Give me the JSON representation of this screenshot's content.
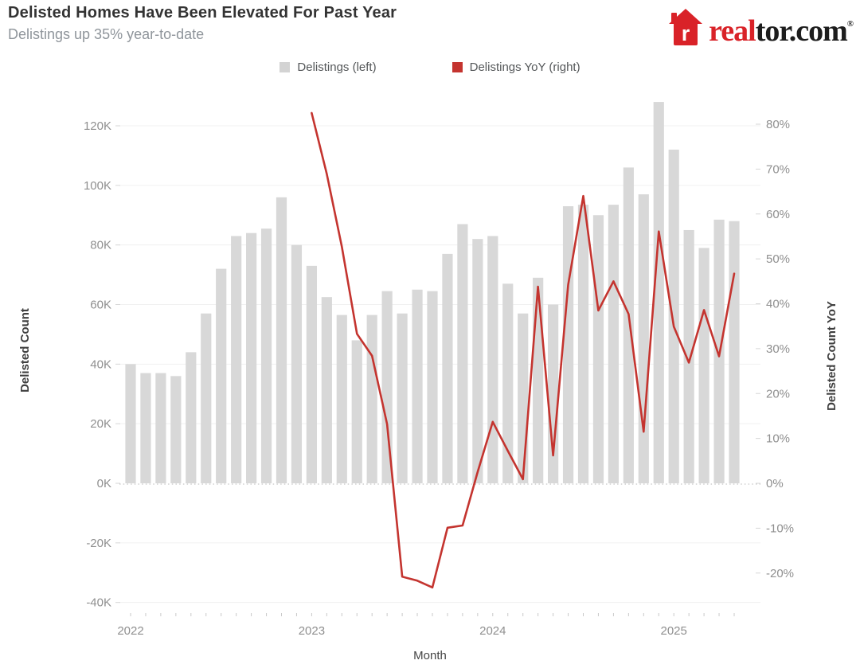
{
  "header": {
    "title": "Delisted Homes Have Been Elevated For Past Year",
    "subtitle": "Delistings up 35% year-to-date"
  },
  "brand": {
    "logo_text_red": "real",
    "logo_text_dark": "tor.com",
    "registered_mark": "®",
    "house_icon": "realtor-house-icon",
    "brand_red": "#d92228",
    "brand_dark": "#1d1d1d"
  },
  "legend": {
    "items": [
      {
        "label": "Delistings (left)",
        "color": "#d3d3d3"
      },
      {
        "label": "Delistings YoY (right)",
        "color": "#c4342f"
      }
    ]
  },
  "axes": {
    "left": {
      "title": "Delisted Count",
      "tick_labels": [
        "120K",
        "100K",
        "80K",
        "60K",
        "40K",
        "20K",
        "0K",
        "-20K",
        "-40K"
      ]
    },
    "right": {
      "title": "Delisted Count YoY",
      "tick_labels": [
        "80%",
        "70%",
        "60%",
        "50%",
        "40%",
        "30%",
        "20%",
        "10%",
        "0%",
        "-10%",
        "-20%"
      ]
    },
    "x": {
      "title": "Month",
      "year_labels": [
        "2022",
        "2023",
        "2024",
        "2025"
      ]
    }
  },
  "chart_data": {
    "type": "bar",
    "subtype": "combo bar+line, dual axis",
    "title": "Delisted Homes Have Been Elevated For Past Year",
    "subtitle": "Delistings up 35% year-to-date",
    "xlabel": "Month",
    "legend_position": "top",
    "grid": "horizontal light",
    "zero_line": "dotted",
    "left_axis_ticks_thousands": [
      120,
      100,
      80,
      60,
      40,
      20,
      0,
      -20,
      -40
    ],
    "right_axis_ticks_percent": [
      80,
      70,
      60,
      50,
      40,
      30,
      20,
      10,
      0,
      -10,
      -20
    ],
    "x_months": [
      "Jan 2022",
      "Feb 2022",
      "Mar 2022",
      "Apr 2022",
      "May 2022",
      "Jun 2022",
      "Jul 2022",
      "Aug 2022",
      "Sep 2022",
      "Oct 2022",
      "Nov 2022",
      "Dec 2022",
      "Jan 2023",
      "Feb 2023",
      "Mar 2023",
      "Apr 2023",
      "May 2023",
      "Jun 2023",
      "Jul 2023",
      "Aug 2023",
      "Sep 2023",
      "Oct 2023",
      "Nov 2023",
      "Dec 2023",
      "Jan 2024",
      "Feb 2024",
      "Mar 2024",
      "Apr 2024",
      "May 2024",
      "Jun 2024",
      "Jul 2024",
      "Aug 2024",
      "Sep 2024",
      "Oct 2024",
      "Nov 2024",
      "Dec 2024",
      "Jan 2025",
      "Feb 2025",
      "Mar 2025",
      "Apr 2025",
      "May 2025"
    ],
    "series": [
      {
        "name": "Delistings (left)",
        "type": "bar",
        "axis": "left",
        "unit": "thousands",
        "color": "#d8d8d8",
        "values": [
          40,
          37,
          37,
          36,
          44,
          57,
          72,
          83,
          84,
          85.5,
          96,
          80,
          73,
          62.5,
          56.5,
          48,
          56.5,
          64.5,
          57,
          65,
          64.5,
          77,
          87,
          82,
          83,
          67,
          57,
          69,
          60,
          93,
          93.5,
          90,
          93.5,
          106,
          97,
          128,
          112,
          85,
          79,
          88.5,
          88
        ]
      },
      {
        "name": "Delistings YoY (right)",
        "type": "line",
        "axis": "right",
        "unit": "percent",
        "color": "#c4342f",
        "values": [
          null,
          null,
          null,
          null,
          null,
          null,
          null,
          null,
          null,
          null,
          null,
          null,
          82.5,
          68.9,
          52.7,
          33.3,
          28.4,
          13.2,
          -20.8,
          -21.7,
          -23.2,
          -9.9,
          -9.4,
          2.5,
          13.7,
          7.2,
          0.9,
          43.8,
          6.2,
          44.2,
          64.0,
          38.5,
          45.0,
          37.7,
          11.5,
          56.1,
          34.9,
          26.9,
          38.6,
          28.3,
          46.7
        ]
      }
    ]
  }
}
